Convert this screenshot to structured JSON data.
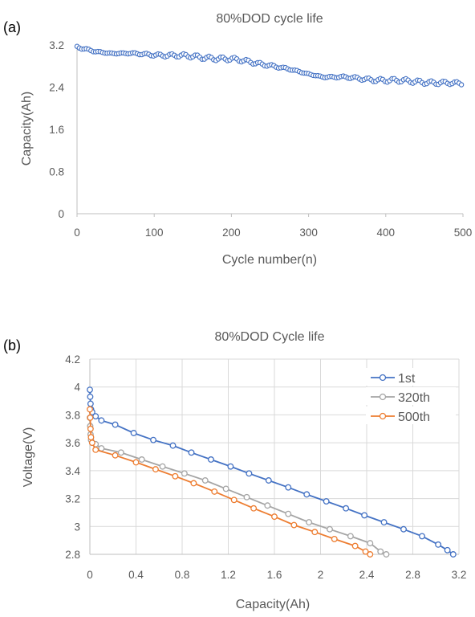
{
  "panels": {
    "a": {
      "label": "(a)"
    },
    "b": {
      "label": "(b)"
    }
  },
  "colors": {
    "blue": "#4472C4",
    "gray": "#A5A5A5",
    "orange": "#ED7D31",
    "grid": "#D9D9D9",
    "axis": "#BFBFBF",
    "text": "#595959"
  },
  "chart_data": [
    {
      "type": "scatter",
      "title": "80%DOD cycle life",
      "xlabel": "Cycle number(n)",
      "ylabel": "Capacity(Ah)",
      "xlim": [
        0,
        500
      ],
      "ylim": [
        0,
        3.2
      ],
      "xticks": [
        0,
        100,
        200,
        300,
        400,
        500
      ],
      "yticks": [
        0,
        0.8,
        1.6,
        2.4,
        3.2
      ],
      "ytick_labels": [
        "0",
        "0.8",
        "1.6",
        "2.4",
        "3.2"
      ],
      "grid": false,
      "series": [
        {
          "color": "#4472C4",
          "marker": "open-circle",
          "trend": {
            "x": [
              0,
              20,
              50,
              100,
              150,
              200,
              250,
              290,
              320,
              350,
              400,
              450,
              500
            ],
            "y": [
              3.15,
              3.09,
              3.04,
              3.02,
              2.98,
              2.93,
              2.82,
              2.68,
              2.6,
              2.58,
              2.53,
              2.5,
              2.46
            ]
          },
          "points_every_n_cycles": 3
        }
      ]
    },
    {
      "type": "line",
      "title": "80%DOD Cycle life",
      "xlabel": "Capacity(Ah)",
      "ylabel": "Voltage(V)",
      "xlim": [
        0,
        3.2
      ],
      "ylim": [
        2.8,
        4.2
      ],
      "xticks": [
        0,
        0.4,
        0.8,
        1.2,
        1.6,
        2,
        2.4,
        2.8,
        3.2
      ],
      "xtick_labels": [
        "0",
        "0.4",
        "0.8",
        "1.2",
        "1.6",
        "2",
        "2.4",
        "2.8",
        "3.2"
      ],
      "yticks": [
        2.8,
        3,
        3.2,
        3.4,
        3.6,
        3.8,
        4,
        4.2
      ],
      "ytick_labels": [
        "2.8",
        "3",
        "3.2",
        "3.4",
        "3.6",
        "3.8",
        "4",
        "4.2"
      ],
      "grid": true,
      "legend": "top-right",
      "series": [
        {
          "name": "1st",
          "color": "#4472C4",
          "x": [
            0,
            0.003,
            0.006,
            0.01,
            0.02,
            0.05,
            0.1,
            0.22,
            0.38,
            0.55,
            0.72,
            0.88,
            1.05,
            1.22,
            1.38,
            1.55,
            1.72,
            1.88,
            2.05,
            2.22,
            2.38,
            2.55,
            2.72,
            2.88,
            3.02,
            3.1,
            3.15
          ],
          "y": [
            3.98,
            3.93,
            3.88,
            3.84,
            3.82,
            3.79,
            3.76,
            3.73,
            3.67,
            3.62,
            3.58,
            3.53,
            3.48,
            3.43,
            3.38,
            3.33,
            3.28,
            3.23,
            3.18,
            3.13,
            3.08,
            3.03,
            2.98,
            2.93,
            2.87,
            2.83,
            2.8
          ]
        },
        {
          "name": "320th",
          "color": "#A5A5A5",
          "x": [
            0,
            0.003,
            0.006,
            0.01,
            0.02,
            0.05,
            0.1,
            0.27,
            0.45,
            0.63,
            0.82,
            1.0,
            1.18,
            1.36,
            1.54,
            1.72,
            1.9,
            2.08,
            2.26,
            2.43,
            2.52,
            2.57
          ],
          "y": [
            3.78,
            3.72,
            3.66,
            3.62,
            3.6,
            3.59,
            3.56,
            3.53,
            3.48,
            3.43,
            3.38,
            3.33,
            3.27,
            3.21,
            3.15,
            3.09,
            3.03,
            2.98,
            2.93,
            2.88,
            2.82,
            2.8
          ]
        },
        {
          "name": "500th",
          "color": "#ED7D31",
          "x": [
            0,
            0.003,
            0.006,
            0.01,
            0.02,
            0.05,
            0.22,
            0.4,
            0.57,
            0.74,
            0.9,
            1.08,
            1.25,
            1.42,
            1.6,
            1.77,
            1.95,
            2.12,
            2.3,
            2.39,
            2.43
          ],
          "y": [
            3.84,
            3.78,
            3.7,
            3.64,
            3.6,
            3.55,
            3.51,
            3.46,
            3.41,
            3.36,
            3.31,
            3.25,
            3.19,
            3.13,
            3.07,
            3.01,
            2.96,
            2.91,
            2.86,
            2.82,
            2.8
          ]
        }
      ]
    }
  ]
}
